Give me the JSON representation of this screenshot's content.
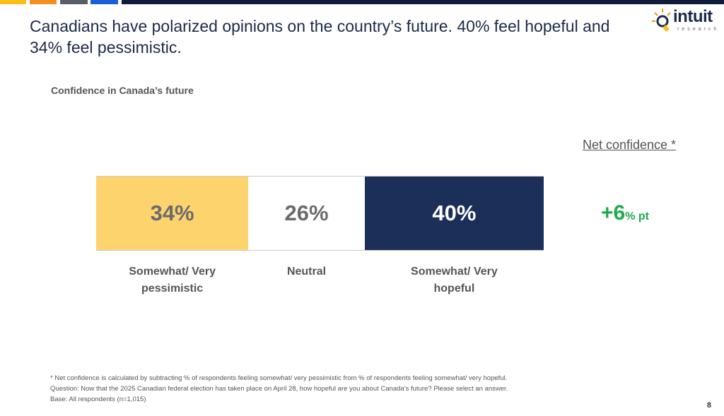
{
  "header": {
    "title": "Canadians have polarized opinions on the country’s future. 40% feel hopeful and 34% feel pessimistic.",
    "stripe_colors": [
      "#fbbf17",
      "#f39021",
      "#5a5d66",
      "#1a5ed8",
      "#0f1b3a"
    ],
    "logo": {
      "name": "intuit",
      "tagline": "research",
      "icon": "lightbulb-icon"
    }
  },
  "chart_data": {
    "type": "bar",
    "subtype": "100% stacked horizontal",
    "title": "Confidence in Canada’s future",
    "categories": [
      "Somewhat/ Very pessimistic",
      "Neutral",
      "Somewhat/ Very hopeful"
    ],
    "values": [
      34,
      26,
      40
    ],
    "data_labels": [
      "34%",
      "26%",
      "40%"
    ],
    "colors": [
      "#fdd36e",
      "#ffffff",
      "#1b2f59"
    ],
    "label_colors": [
      "#6b6b6b",
      "#6b6b6b",
      "#ffffff"
    ],
    "net": {
      "label": "Net confidence *",
      "value": "+6",
      "unit": "% pt",
      "color": "#1faa4a"
    }
  },
  "footnotes": [
    "* Net confidence is calculated by subtracting % of respondents feeling somewhat/ very pessimistic from % of respondents feeling somewhat/ very hopeful.",
    "Question: Now that the 2025 Canadian federal election has taken place on April 28, how hopeful are you about Canada’s future? Please select an answer.",
    "Base: All respondents (n=1,015)"
  ],
  "page_number": "8"
}
